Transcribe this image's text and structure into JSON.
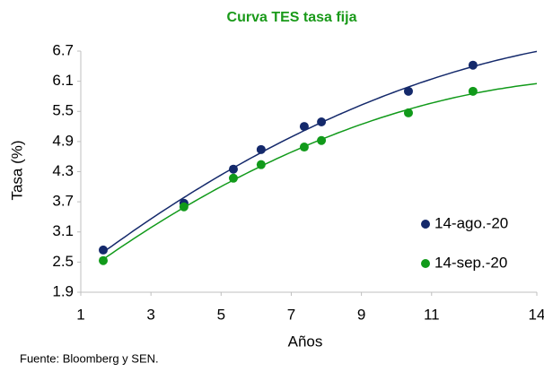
{
  "chart_data": {
    "type": "scatter",
    "title": "Curva TES tasa fija",
    "x_label": "Años",
    "y_label": "Tasa (%)",
    "source": "Fuente: Bloomberg y SEN.",
    "xlim": [
      1,
      14
    ],
    "xticks": [
      1,
      3,
      5,
      7,
      9,
      11,
      14
    ],
    "ylim": [
      1.9,
      6.7
    ],
    "yticks": [
      1.9,
      2.5,
      3.1,
      3.7,
      4.3,
      4.9,
      5.5,
      6.1,
      6.7
    ],
    "trendline": "polynomial",
    "legend": "right",
    "series": [
      {
        "name": "14-ago.-20",
        "color": "#14296b",
        "x": [
          1.64,
          3.94,
          5.35,
          6.14,
          7.37,
          7.86,
          10.34,
          12.18
        ],
        "values": [
          2.74,
          3.67,
          4.35,
          4.74,
          5.2,
          5.29,
          5.9,
          6.42
        ]
      },
      {
        "name": "14-sep.-20",
        "color": "#119a1a",
        "x": [
          1.64,
          3.94,
          5.35,
          6.14,
          7.37,
          7.86,
          10.34,
          12.18
        ],
        "values": [
          2.53,
          3.6,
          4.17,
          4.44,
          4.79,
          4.92,
          5.47,
          5.9
        ]
      }
    ]
  }
}
